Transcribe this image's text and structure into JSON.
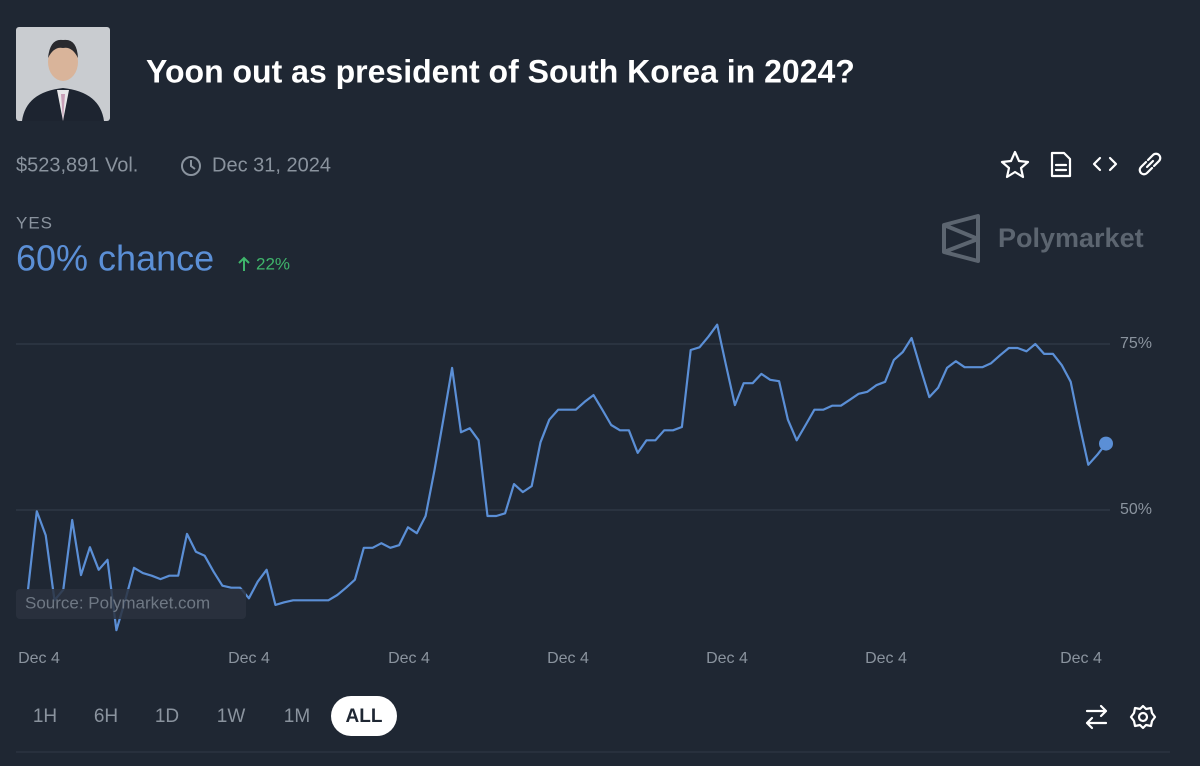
{
  "header": {
    "title": "Yoon out as president of South Korea in 2024?",
    "volume": "$523,891 Vol.",
    "end_date": "Dec 31, 2024"
  },
  "outcome": {
    "label": "YES",
    "chance": "60% chance",
    "change": "22%"
  },
  "brand": "Polymarket",
  "source": "Source: Polymarket.com",
  "chart_data": {
    "type": "line",
    "color": "#5b8fd6",
    "values": [
      38.0,
      49.8,
      46.2,
      36.4,
      38.0,
      48.5,
      40.2,
      44.4,
      41.0,
      42.5,
      31.9,
      36.4,
      41.3,
      40.5,
      40.1,
      39.6,
      40.1,
      40.1,
      46.4,
      43.7,
      43.1,
      40.7,
      38.6,
      38.3,
      38.3,
      36.7,
      39.2,
      41.0,
      35.7,
      36.1,
      36.4,
      36.4,
      36.4,
      36.4,
      36.4,
      37.2,
      38.3,
      39.5,
      44.3,
      44.3,
      45.0,
      44.3,
      44.7,
      47.4,
      46.5,
      49.1,
      56.0,
      63.6,
      71.4,
      61.7,
      62.3,
      60.5,
      49.1,
      49.1,
      49.5,
      53.9,
      52.7,
      53.6,
      60.2,
      63.6,
      65.1,
      65.1,
      65.1,
      66.3,
      67.3,
      65.1,
      62.8,
      62.0,
      62.0,
      58.6,
      60.5,
      60.5,
      62.0,
      62.0,
      62.5,
      74.1,
      74.5,
      76.1,
      77.9,
      71.8,
      65.8,
      69.1,
      69.1,
      70.5,
      69.6,
      69.4,
      63.6,
      60.5,
      62.8,
      65.1,
      65.1,
      65.7,
      65.7,
      66.6,
      67.5,
      67.8,
      68.8,
      69.3,
      72.6,
      73.8,
      75.9,
      71.4,
      67.0,
      68.4,
      71.4,
      72.4,
      71.5,
      71.5,
      71.5,
      72.1,
      73.3,
      74.4,
      74.4,
      73.9,
      75.0,
      73.5,
      73.5,
      71.8,
      69.3,
      62.8,
      56.8,
      58.3,
      60
    ],
    "ylim": [
      30,
      82
    ],
    "yticks": [
      {
        "value": 50,
        "label": "50%"
      },
      {
        "value": 75,
        "label": "75%"
      }
    ],
    "grid": true,
    "xtick_labels": [
      "Dec 4",
      "Dec 4",
      "Dec 4",
      "Dec 4",
      "Dec 4",
      "Dec 4",
      "Dec 4"
    ]
  },
  "time_ranges": [
    "1H",
    "6H",
    "1D",
    "1W",
    "1M",
    "ALL"
  ],
  "selected_range": 5
}
